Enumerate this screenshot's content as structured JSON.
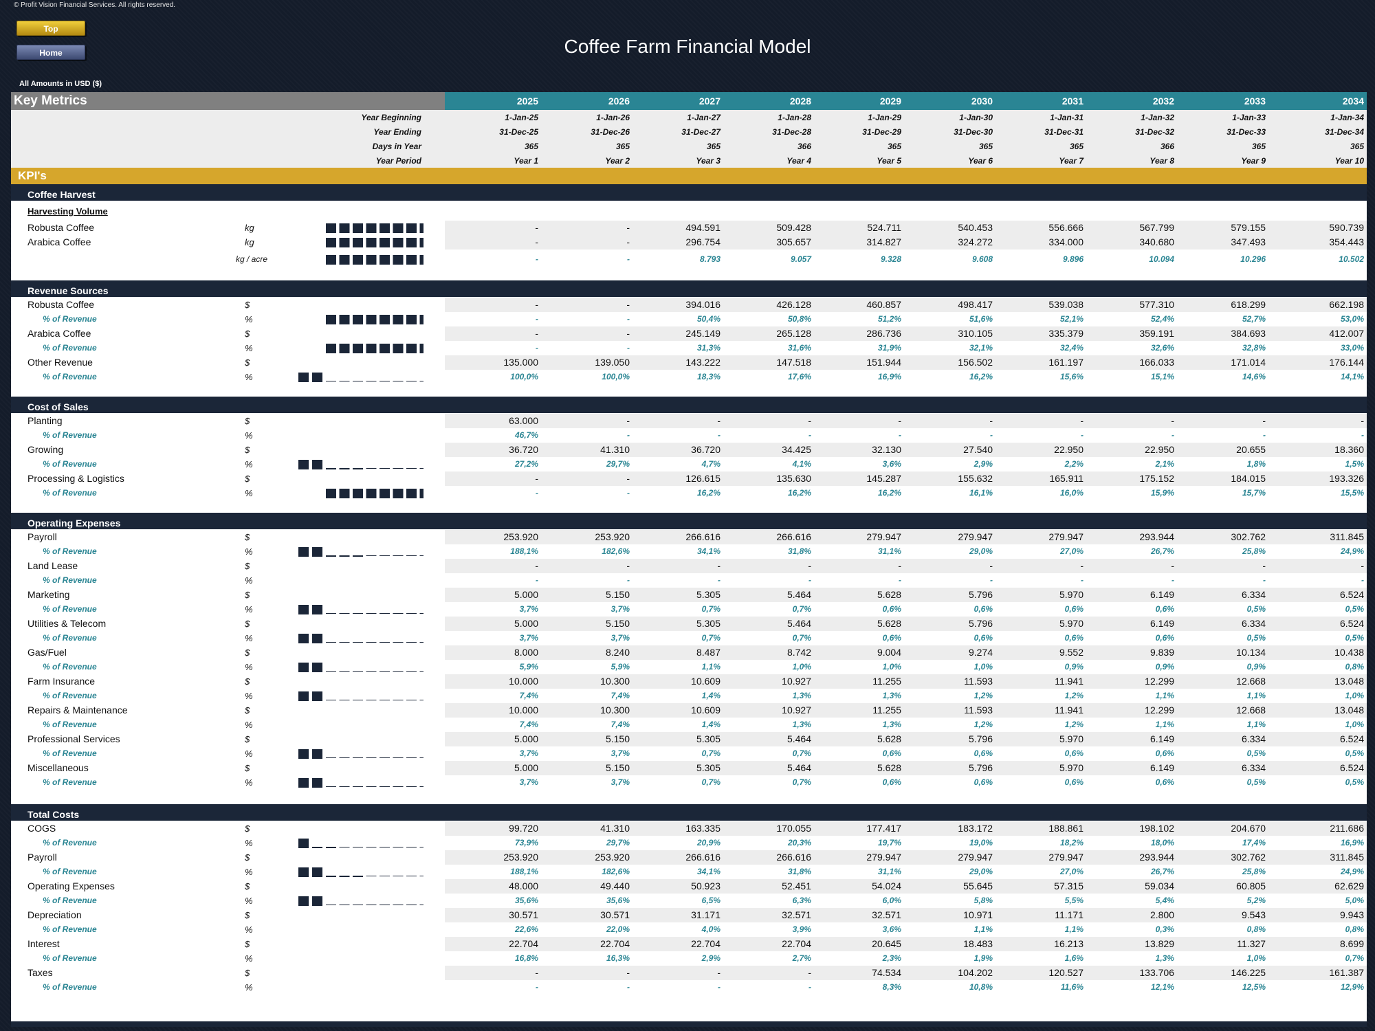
{
  "copyright": "© Profit Vision Financial Services. All rights reserved.",
  "nav": {
    "top_label": "Top",
    "home_label": "Home"
  },
  "title": "Coffee Farm Financial Model",
  "amounts_label": "All Amounts in  USD ($)",
  "key_metrics_label": "Key Metrics",
  "years": [
    "2025",
    "2026",
    "2027",
    "2028",
    "2029",
    "2030",
    "2031",
    "2032",
    "2033",
    "2034"
  ],
  "timing": [
    {
      "label": "Year Beginning",
      "values": [
        "1-Jan-25",
        "1-Jan-26",
        "1-Jan-27",
        "1-Jan-28",
        "1-Jan-29",
        "1-Jan-30",
        "1-Jan-31",
        "1-Jan-32",
        "1-Jan-33",
        "1-Jan-34"
      ]
    },
    {
      "label": "Year Ending",
      "values": [
        "31-Dec-25",
        "31-Dec-26",
        "31-Dec-27",
        "31-Dec-28",
        "31-Dec-29",
        "31-Dec-30",
        "31-Dec-31",
        "31-Dec-32",
        "31-Dec-33",
        "31-Dec-34"
      ]
    },
    {
      "label": "Days in Year",
      "values": [
        "365",
        "365",
        "365",
        "366",
        "365",
        "365",
        "365",
        "366",
        "365",
        "365"
      ]
    },
    {
      "label": "Year Period",
      "values": [
        "Year 1",
        "Year 2",
        "Year 3",
        "Year 4",
        "Year 5",
        "Year 6",
        "Year 7",
        "Year 8",
        "Year 9",
        "Year 10"
      ]
    }
  ],
  "kpi_label": "KPI's",
  "colors": {
    "navy": "#1b2638",
    "teal": "#2a8594",
    "gold": "#d6a62c"
  },
  "sections": [
    {
      "title": "Coffee Harvest",
      "subheader": "Harvesting Volume",
      "rows": [
        {
          "label": "Robusta Coffee",
          "unit": "kg",
          "pct": false,
          "spark": "full",
          "values": [
            "-",
            "-",
            "494.591",
            "509.428",
            "524.711",
            "540.453",
            "556.666",
            "567.799",
            "579.155",
            "590.739"
          ]
        },
        {
          "label": "Arabica Coffee",
          "unit": "kg",
          "pct": false,
          "spark": "full",
          "values": [
            "-",
            "-",
            "296.754",
            "305.657",
            "314.827",
            "324.272",
            "334.000",
            "340.680",
            "347.493",
            "354.443"
          ]
        },
        {
          "label": "",
          "unit": "kg / acre",
          "pct": true,
          "spark": "full",
          "values": [
            "-",
            "-",
            "8.793",
            "9.057",
            "9.328",
            "9.608",
            "9.896",
            "10.094",
            "10.296",
            "10.502"
          ]
        }
      ]
    },
    {
      "title": "Revenue Sources",
      "rows": [
        {
          "label": "Robusta Coffee",
          "unit": "$",
          "pct": false,
          "spark": "",
          "values": [
            "-",
            "-",
            "394.016",
            "426.128",
            "460.857",
            "498.417",
            "539.038",
            "577.310",
            "618.299",
            "662.198"
          ]
        },
        {
          "label": "% of Revenue",
          "unit": "%",
          "pct": true,
          "spark": "full",
          "values": [
            "-",
            "-",
            "50,4%",
            "50,8%",
            "51,2%",
            "51,6%",
            "52,1%",
            "52,4%",
            "52,7%",
            "53,0%"
          ]
        },
        {
          "label": "Arabica Coffee",
          "unit": "$",
          "pct": false,
          "spark": "",
          "values": [
            "-",
            "-",
            "245.149",
            "265.128",
            "286.736",
            "310.105",
            "335.379",
            "359.191",
            "384.693",
            "412.007"
          ]
        },
        {
          "label": "% of Revenue",
          "unit": "%",
          "pct": true,
          "spark": "full",
          "values": [
            "-",
            "-",
            "31,3%",
            "31,6%",
            "31,9%",
            "32,1%",
            "32,4%",
            "32,6%",
            "32,8%",
            "33,0%"
          ]
        },
        {
          "label": "Other Revenue",
          "unit": "$",
          "pct": false,
          "spark": "",
          "values": [
            "135.000",
            "139.050",
            "143.222",
            "147.518",
            "151.944",
            "156.502",
            "161.197",
            "166.033",
            "171.014",
            "176.144"
          ]
        },
        {
          "label": "% of Revenue",
          "unit": "%",
          "pct": true,
          "spark": "two",
          "values": [
            "100,0%",
            "100,0%",
            "18,3%",
            "17,6%",
            "16,9%",
            "16,2%",
            "15,6%",
            "15,1%",
            "14,6%",
            "14,1%"
          ]
        }
      ]
    },
    {
      "title": "Cost of Sales",
      "rows": [
        {
          "label": "Planting",
          "unit": "$",
          "pct": false,
          "spark": "",
          "values": [
            "63.000",
            "-",
            "-",
            "-",
            "-",
            "-",
            "-",
            "-",
            "-",
            "-"
          ]
        },
        {
          "label": "% of Revenue",
          "unit": "%",
          "pct": true,
          "spark": "",
          "values": [
            "46,7%",
            "-",
            "-",
            "-",
            "-",
            "-",
            "-",
            "-",
            "-",
            "-"
          ]
        },
        {
          "label": "Growing",
          "unit": "$",
          "pct": false,
          "spark": "",
          "values": [
            "36.720",
            "41.310",
            "36.720",
            "34.425",
            "32.130",
            "27.540",
            "22.950",
            "22.950",
            "20.655",
            "18.360"
          ]
        },
        {
          "label": "% of Revenue",
          "unit": "%",
          "pct": true,
          "spark": "twoplus",
          "values": [
            "27,2%",
            "29,7%",
            "4,7%",
            "4,1%",
            "3,6%",
            "2,9%",
            "2,2%",
            "2,1%",
            "1,8%",
            "1,5%"
          ]
        },
        {
          "label": "Processing & Logistics",
          "unit": "$",
          "pct": false,
          "spark": "",
          "values": [
            "-",
            "-",
            "126.615",
            "135.630",
            "145.287",
            "155.632",
            "165.911",
            "175.152",
            "184.015",
            "193.326"
          ]
        },
        {
          "label": "% of Revenue",
          "unit": "%",
          "pct": true,
          "spark": "full",
          "values": [
            "-",
            "-",
            "16,2%",
            "16,2%",
            "16,2%",
            "16,1%",
            "16,0%",
            "15,9%",
            "15,7%",
            "15,5%"
          ]
        }
      ]
    },
    {
      "title": "Operating Expenses",
      "rows": [
        {
          "label": "Payroll",
          "unit": "$",
          "pct": false,
          "spark": "",
          "values": [
            "253.920",
            "253.920",
            "266.616",
            "266.616",
            "279.947",
            "279.947",
            "279.947",
            "293.944",
            "302.762",
            "311.845"
          ]
        },
        {
          "label": "% of Revenue",
          "unit": "%",
          "pct": true,
          "spark": "twoplus",
          "values": [
            "188,1%",
            "182,6%",
            "34,1%",
            "31,8%",
            "31,1%",
            "29,0%",
            "27,0%",
            "26,7%",
            "25,8%",
            "24,9%"
          ]
        },
        {
          "label": "Land Lease",
          "unit": "$",
          "pct": false,
          "spark": "",
          "values": [
            "-",
            "-",
            "-",
            "-",
            "-",
            "-",
            "-",
            "-",
            "-",
            "-"
          ]
        },
        {
          "label": "% of Revenue",
          "unit": "%",
          "pct": true,
          "spark": "",
          "values": [
            "-",
            "-",
            "-",
            "-",
            "-",
            "-",
            "-",
            "-",
            "-",
            "-"
          ]
        },
        {
          "label": "Marketing",
          "unit": "$",
          "pct": false,
          "spark": "",
          "values": [
            "5.000",
            "5.150",
            "5.305",
            "5.464",
            "5.628",
            "5.796",
            "5.970",
            "6.149",
            "6.334",
            "6.524"
          ]
        },
        {
          "label": "% of Revenue",
          "unit": "%",
          "pct": true,
          "spark": "two",
          "values": [
            "3,7%",
            "3,7%",
            "0,7%",
            "0,7%",
            "0,6%",
            "0,6%",
            "0,6%",
            "0,6%",
            "0,5%",
            "0,5%"
          ]
        },
        {
          "label": "Utilities & Telecom",
          "unit": "$",
          "pct": false,
          "spark": "",
          "values": [
            "5.000",
            "5.150",
            "5.305",
            "5.464",
            "5.628",
            "5.796",
            "5.970",
            "6.149",
            "6.334",
            "6.524"
          ]
        },
        {
          "label": "% of Revenue",
          "unit": "%",
          "pct": true,
          "spark": "two",
          "values": [
            "3,7%",
            "3,7%",
            "0,7%",
            "0,7%",
            "0,6%",
            "0,6%",
            "0,6%",
            "0,6%",
            "0,5%",
            "0,5%"
          ]
        },
        {
          "label": "Gas/Fuel",
          "unit": "$",
          "pct": false,
          "spark": "",
          "values": [
            "8.000",
            "8.240",
            "8.487",
            "8.742",
            "9.004",
            "9.274",
            "9.552",
            "9.839",
            "10.134",
            "10.438"
          ]
        },
        {
          "label": "% of Revenue",
          "unit": "%",
          "pct": true,
          "spark": "two",
          "values": [
            "5,9%",
            "5,9%",
            "1,1%",
            "1,0%",
            "1,0%",
            "1,0%",
            "0,9%",
            "0,9%",
            "0,9%",
            "0,8%"
          ]
        },
        {
          "label": "Farm Insurance",
          "unit": "$",
          "pct": false,
          "spark": "",
          "values": [
            "10.000",
            "10.300",
            "10.609",
            "10.927",
            "11.255",
            "11.593",
            "11.941",
            "12.299",
            "12.668",
            "13.048"
          ]
        },
        {
          "label": "% of Revenue",
          "unit": "%",
          "pct": true,
          "spark": "two",
          "values": [
            "7,4%",
            "7,4%",
            "1,4%",
            "1,3%",
            "1,3%",
            "1,2%",
            "1,2%",
            "1,1%",
            "1,1%",
            "1,0%"
          ]
        },
        {
          "label": "Repairs & Maintenance",
          "unit": "$",
          "pct": false,
          "spark": "",
          "values": [
            "10.000",
            "10.300",
            "10.609",
            "10.927",
            "11.255",
            "11.593",
            "11.941",
            "12.299",
            "12.668",
            "13.048"
          ]
        },
        {
          "label": "% of Revenue",
          "unit": "%",
          "pct": true,
          "spark": "",
          "values": [
            "7,4%",
            "7,4%",
            "1,4%",
            "1,3%",
            "1,3%",
            "1,2%",
            "1,2%",
            "1,1%",
            "1,1%",
            "1,0%"
          ]
        },
        {
          "label": "Professional Services",
          "unit": "$",
          "pct": false,
          "spark": "",
          "values": [
            "5.000",
            "5.150",
            "5.305",
            "5.464",
            "5.628",
            "5.796",
            "5.970",
            "6.149",
            "6.334",
            "6.524"
          ]
        },
        {
          "label": "% of Revenue",
          "unit": "%",
          "pct": true,
          "spark": "two",
          "values": [
            "3,7%",
            "3,7%",
            "0,7%",
            "0,7%",
            "0,6%",
            "0,6%",
            "0,6%",
            "0,6%",
            "0,5%",
            "0,5%"
          ]
        },
        {
          "label": "Miscellaneous",
          "unit": "$",
          "pct": false,
          "spark": "",
          "values": [
            "5.000",
            "5.150",
            "5.305",
            "5.464",
            "5.628",
            "5.796",
            "5.970",
            "6.149",
            "6.334",
            "6.524"
          ]
        },
        {
          "label": "% of Revenue",
          "unit": "%",
          "pct": true,
          "spark": "two",
          "values": [
            "3,7%",
            "3,7%",
            "0,7%",
            "0,7%",
            "0,6%",
            "0,6%",
            "0,6%",
            "0,6%",
            "0,5%",
            "0,5%"
          ]
        }
      ]
    },
    {
      "title": "Total Costs",
      "rows": [
        {
          "label": "COGS",
          "unit": "$",
          "pct": false,
          "spark": "",
          "values": [
            "99.720",
            "41.310",
            "163.335",
            "170.055",
            "177.417",
            "183.172",
            "188.861",
            "198.102",
            "204.670",
            "211.686"
          ]
        },
        {
          "label": "% of Revenue",
          "unit": "%",
          "pct": true,
          "spark": "oneplus",
          "values": [
            "73,9%",
            "29,7%",
            "20,9%",
            "20,3%",
            "19,7%",
            "19,0%",
            "18,2%",
            "18,0%",
            "17,4%",
            "16,9%"
          ]
        },
        {
          "label": "Payroll",
          "unit": "$",
          "pct": false,
          "spark": "",
          "values": [
            "253.920",
            "253.920",
            "266.616",
            "266.616",
            "279.947",
            "279.947",
            "279.947",
            "293.944",
            "302.762",
            "311.845"
          ]
        },
        {
          "label": "% of Revenue",
          "unit": "%",
          "pct": true,
          "spark": "twoplus",
          "values": [
            "188,1%",
            "182,6%",
            "34,1%",
            "31,8%",
            "31,1%",
            "29,0%",
            "27,0%",
            "26,7%",
            "25,8%",
            "24,9%"
          ]
        },
        {
          "label": "Operating Expenses",
          "unit": "$",
          "pct": false,
          "spark": "",
          "values": [
            "48.000",
            "49.440",
            "50.923",
            "52.451",
            "54.024",
            "55.645",
            "57.315",
            "59.034",
            "60.805",
            "62.629"
          ]
        },
        {
          "label": "% of Revenue",
          "unit": "%",
          "pct": true,
          "spark": "two",
          "values": [
            "35,6%",
            "35,6%",
            "6,5%",
            "6,3%",
            "6,0%",
            "5,8%",
            "5,5%",
            "5,4%",
            "5,2%",
            "5,0%"
          ]
        },
        {
          "label": "Depreciation",
          "unit": "$",
          "pct": false,
          "spark": "",
          "values": [
            "30.571",
            "30.571",
            "31.171",
            "32.571",
            "32.571",
            "10.971",
            "11.171",
            "2.800",
            "9.543",
            "9.943"
          ]
        },
        {
          "label": "% of Revenue",
          "unit": "%",
          "pct": true,
          "spark": "",
          "values": [
            "22,6%",
            "22,0%",
            "4,0%",
            "3,9%",
            "3,6%",
            "1,1%",
            "1,1%",
            "0,3%",
            "0,8%",
            "0,8%"
          ]
        },
        {
          "label": "Interest",
          "unit": "$",
          "pct": false,
          "spark": "",
          "values": [
            "22.704",
            "22.704",
            "22.704",
            "22.704",
            "20.645",
            "18.483",
            "16.213",
            "13.829",
            "11.327",
            "8.699"
          ]
        },
        {
          "label": "% of Revenue",
          "unit": "%",
          "pct": true,
          "spark": "",
          "values": [
            "16,8%",
            "16,3%",
            "2,9%",
            "2,7%",
            "2,3%",
            "1,9%",
            "1,6%",
            "1,3%",
            "1,0%",
            "0,7%"
          ]
        },
        {
          "label": "Taxes",
          "unit": "$",
          "pct": false,
          "spark": "",
          "values": [
            "-",
            "-",
            "-",
            "-",
            "74.534",
            "104.202",
            "120.527",
            "133.706",
            "146.225",
            "161.387"
          ]
        },
        {
          "label": "% of Revenue",
          "unit": "%",
          "pct": true,
          "spark": "",
          "values": [
            "-",
            "-",
            "-",
            "-",
            "8,3%",
            "10,8%",
            "11,6%",
            "12,1%",
            "12,5%",
            "12,9%"
          ]
        }
      ]
    }
  ]
}
